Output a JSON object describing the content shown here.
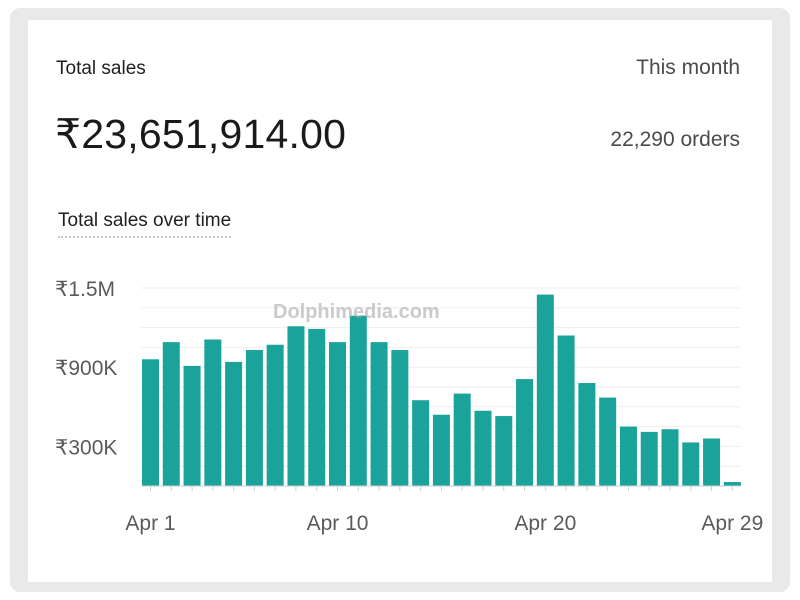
{
  "header": {
    "title": "Total sales",
    "range": "This month",
    "total": "₹23,651,914.00",
    "orders": "22,290 orders"
  },
  "chart_title": "Total sales over time",
  "watermark": "Dolphimedia.com",
  "colors": {
    "bar": "#1aa39a",
    "grid": "#ededed",
    "axis": "#cfcfcf",
    "tick_text": "#5a5a5a"
  },
  "chart_data": {
    "type": "bar",
    "title": "Total sales over time",
    "xlabel": "",
    "ylabel": "",
    "ylim": [
      0,
      1500000
    ],
    "grid": true,
    "y_ticks": [
      {
        "value": 300000,
        "label": "₹300K"
      },
      {
        "value": 900000,
        "label": "₹900K"
      },
      {
        "value": 1500000,
        "label": "₹1.5M"
      }
    ],
    "x_tick_labels": [
      {
        "day": 1,
        "label": "Apr 1"
      },
      {
        "day": 10,
        "label": "Apr 10"
      },
      {
        "day": 20,
        "label": "Apr 20"
      },
      {
        "day": 29,
        "label": "Apr 29"
      }
    ],
    "categories": [
      "Apr 1",
      "Apr 2",
      "Apr 3",
      "Apr 4",
      "Apr 5",
      "Apr 6",
      "Apr 7",
      "Apr 8",
      "Apr 9",
      "Apr 10",
      "Apr 11",
      "Apr 12",
      "Apr 13",
      "Apr 14",
      "Apr 15",
      "Apr 16",
      "Apr 17",
      "Apr 18",
      "Apr 19",
      "Apr 20",
      "Apr 21",
      "Apr 22",
      "Apr 23",
      "Apr 24",
      "Apr 25",
      "Apr 26",
      "Apr 27",
      "Apr 28",
      "Apr 29"
    ],
    "values": [
      960000,
      1090000,
      910000,
      1110000,
      940000,
      1030000,
      1070000,
      1210000,
      1190000,
      1090000,
      1290000,
      1090000,
      1030000,
      650000,
      540000,
      700000,
      570000,
      530000,
      810000,
      1450000,
      1140000,
      780000,
      670000,
      450000,
      410000,
      430000,
      330000,
      360000,
      30000
    ]
  }
}
